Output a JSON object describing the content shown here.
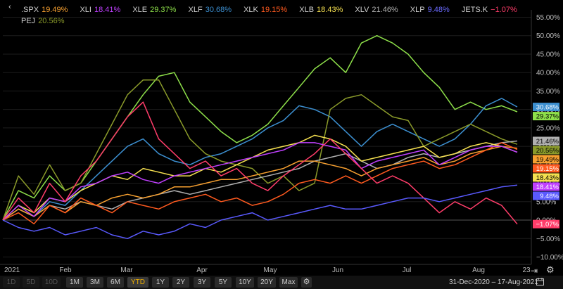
{
  "legend": [
    {
      "name": ".SPX",
      "value": "19.49%",
      "color": "#f7a030"
    },
    {
      "name": "XLI",
      "value": "18.41%",
      "color": "#c040ff"
    },
    {
      "name": "XLE",
      "value": "29.37%",
      "color": "#8ee04a"
    },
    {
      "name": "XLF",
      "value": "30.68%",
      "color": "#3c8fd0"
    },
    {
      "name": "XLK",
      "value": "19.15%",
      "color": "#ff5a1f"
    },
    {
      "name": "XLB",
      "value": "18.43%",
      "color": "#f5e050"
    },
    {
      "name": "XLV",
      "value": "21.46%",
      "color": "#b0b0b0"
    },
    {
      "name": "XLP",
      "value": "9.48%",
      "color": "#5a5aff"
    },
    {
      "name": "JETS.K",
      "value": "−1.07%",
      "color": "#ff3d6a"
    },
    {
      "name": "PEJ",
      "value": "20.56%",
      "color": "#8a9a2a"
    }
  ],
  "chart_data": {
    "type": "line",
    "x_ticks": [
      "2021",
      "Feb",
      "Mar",
      "Apr",
      "May",
      "Jun",
      "Jul",
      "Aug",
      "23"
    ],
    "y_ticks": [
      "55.00%",
      "50.00%",
      "45.00%",
      "40.00%",
      "35.00%",
      "30.00%",
      "25.00%",
      "20.00%",
      "15.00%",
      "10.00%",
      "5.00%",
      "0.00%",
      "−5.00%",
      "−10.00%"
    ],
    "y_tick_values": [
      55,
      50,
      45,
      40,
      35,
      30,
      25,
      20,
      15,
      10,
      5,
      0,
      -5,
      -10
    ],
    "ylim": [
      -12,
      57
    ],
    "end_labels": [
      {
        "text": "30.68%",
        "value": 30.68,
        "color": "#3c8fd0"
      },
      {
        "text": "29.37%",
        "value": 29.37,
        "color": "#8ee04a"
      },
      {
        "text": "21.46%",
        "value": 21.46,
        "color": "#b0b0b0"
      },
      {
        "text": "20.56%",
        "value": 20.56,
        "color": "#8a9a2a"
      },
      {
        "text": "19.49%",
        "value": 19.49,
        "color": "#f7a030"
      },
      {
        "text": "19.15%",
        "value": 19.15,
        "color": "#ff5a1f"
      },
      {
        "text": "18.43%",
        "value": 18.43,
        "color": "#f5e050"
      },
      {
        "text": "18.41%",
        "value": 18.41,
        "color": "#c040ff"
      },
      {
        "text": "9.48%",
        "value": 9.48,
        "color": "#5a5aff"
      },
      {
        "text": "−1.07%",
        "value": -1.07,
        "color": "#ff3d6a"
      }
    ],
    "series": [
      {
        "name": "XLE",
        "color": "#8ee04a",
        "values": [
          0,
          8,
          6,
          12,
          8,
          10,
          16,
          22,
          28,
          34,
          39,
          40,
          32,
          28,
          24,
          21,
          23,
          26,
          31,
          36,
          41,
          44,
          40,
          48,
          50,
          48,
          45,
          40,
          36,
          30,
          32,
          30,
          31,
          29.37
        ]
      },
      {
        "name": "XLF",
        "color": "#3c8fd0",
        "values": [
          0,
          3,
          1,
          5,
          4,
          8,
          12,
          16,
          20,
          22,
          18,
          16,
          15,
          17,
          18,
          20,
          22,
          25,
          27,
          31,
          30,
          28,
          24,
          20,
          24,
          26,
          24,
          22,
          20,
          22,
          26,
          31,
          33,
          30.68
        ]
      },
      {
        "name": "PEJ",
        "color": "#8a9a2a",
        "values": [
          0,
          12,
          7,
          15,
          8,
          10,
          18,
          26,
          34,
          38,
          38,
          30,
          22,
          18,
          16,
          15,
          14,
          10,
          12,
          8,
          10,
          30,
          33,
          34,
          31,
          28,
          27,
          20,
          22,
          24,
          26,
          24,
          22,
          20.56
        ]
      },
      {
        "name": "XLV",
        "color": "#b0b0b0",
        "values": [
          0,
          3,
          1,
          4,
          3,
          5,
          4,
          3,
          5,
          6,
          7,
          8,
          7,
          8,
          9,
          10,
          11,
          12,
          13,
          14,
          16,
          17,
          18,
          16,
          14,
          15,
          17,
          18,
          17,
          18,
          19,
          20,
          21,
          21.46
        ]
      },
      {
        "name": ".SPX",
        "color": "#f7a030",
        "values": [
          0,
          3,
          1,
          4,
          2,
          5,
          4,
          6,
          7,
          6,
          7,
          9,
          9,
          10,
          11,
          11,
          12,
          13,
          14,
          16,
          16,
          15,
          14,
          12,
          14,
          15,
          16,
          17,
          15,
          16,
          18,
          19,
          20,
          19.49
        ]
      },
      {
        "name": "XLK",
        "color": "#ff5a1f",
        "values": [
          0,
          2,
          -1,
          4,
          2,
          6,
          4,
          2,
          5,
          4,
          3,
          5,
          6,
          7,
          5,
          6,
          4,
          5,
          7,
          10,
          11,
          10,
          12,
          10,
          12,
          14,
          15,
          16,
          14,
          15,
          17,
          19,
          21,
          19.15
        ]
      },
      {
        "name": "XLB",
        "color": "#f5e050",
        "values": [
          0,
          4,
          2,
          6,
          5,
          8,
          10,
          12,
          11,
          14,
          13,
          12,
          12,
          14,
          13,
          15,
          17,
          19,
          20,
          21,
          23,
          22,
          20,
          16,
          17,
          18,
          19,
          20,
          17,
          18,
          20,
          21,
          20,
          18.43
        ]
      },
      {
        "name": "XLI",
        "color": "#c040ff",
        "values": [
          0,
          4,
          1,
          6,
          5,
          9,
          10,
          12,
          13,
          11,
          10,
          12,
          13,
          14,
          15,
          16,
          17,
          18,
          19,
          21,
          21,
          20,
          19,
          14,
          16,
          17,
          18,
          19,
          15,
          17,
          19,
          20,
          20,
          18.41
        ]
      },
      {
        "name": "JETS.K",
        "color": "#ff3d6a",
        "values": [
          0,
          6,
          2,
          10,
          5,
          12,
          16,
          22,
          28,
          32,
          22,
          18,
          14,
          16,
          12,
          14,
          10,
          8,
          12,
          15,
          18,
          22,
          18,
          14,
          10,
          12,
          10,
          6,
          2,
          5,
          3,
          6,
          4,
          -1.07
        ]
      },
      {
        "name": "XLP",
        "color": "#5a5aff",
        "values": [
          0,
          -2,
          -3,
          -2,
          -4,
          -3,
          -2,
          -4,
          -5,
          -3,
          -4,
          -3,
          -1,
          -2,
          0,
          1,
          2,
          0,
          1,
          2,
          3,
          4,
          3,
          3,
          4,
          5,
          6,
          6,
          5,
          6,
          7,
          8,
          9,
          9.48
        ]
      }
    ]
  },
  "toolbar": {
    "buttons": [
      {
        "label": "1D",
        "state": "disabled"
      },
      {
        "label": "5D",
        "state": "disabled"
      },
      {
        "label": "10D",
        "state": "disabled"
      },
      {
        "label": "1M",
        "state": "normal"
      },
      {
        "label": "3M",
        "state": "normal"
      },
      {
        "label": "6M",
        "state": "normal"
      },
      {
        "label": "YTD",
        "state": "active"
      },
      {
        "label": "1Y",
        "state": "normal"
      },
      {
        "label": "2Y",
        "state": "normal"
      },
      {
        "label": "3Y",
        "state": "normal"
      },
      {
        "label": "5Y",
        "state": "normal"
      },
      {
        "label": "10Y",
        "state": "normal"
      },
      {
        "label": "20Y",
        "state": "normal"
      },
      {
        "label": "Max",
        "state": "normal"
      }
    ],
    "date_range": "31-Dec-2020  –  17-Aug-2021"
  }
}
